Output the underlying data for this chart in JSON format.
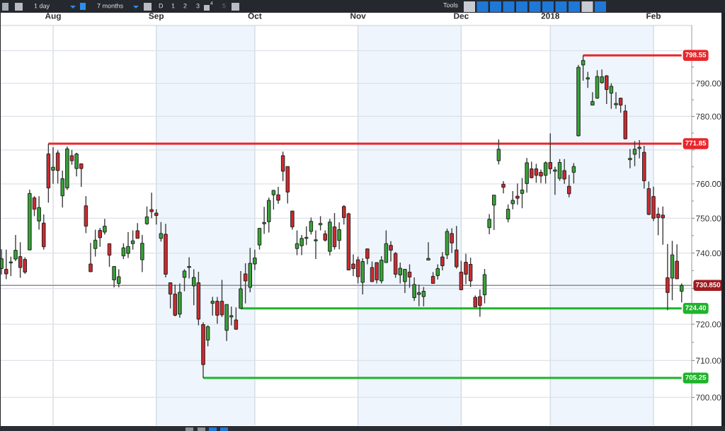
{
  "chart_data": {
    "type": "candlestick",
    "categories": [
      null,
      null,
      null,
      null,
      null,
      null,
      null,
      null,
      null,
      null,
      null,
      "Aug",
      null,
      null,
      null,
      null,
      null,
      null,
      null,
      null,
      null,
      null,
      null,
      null,
      null,
      null,
      null,
      null,
      null,
      null,
      null,
      null,
      null,
      "Sep",
      null,
      null,
      null,
      null,
      null,
      null,
      null,
      null,
      null,
      null,
      null,
      null,
      null,
      null,
      null,
      null,
      null,
      null,
      null,
      null,
      "Oct",
      null,
      null,
      null,
      null,
      null,
      null,
      null,
      null,
      null,
      null,
      null,
      null,
      null,
      null,
      null,
      null,
      null,
      null,
      null,
      null,
      null,
      "Nov",
      null,
      null,
      null,
      null,
      null,
      null,
      null,
      null,
      null,
      null,
      null,
      null,
      null,
      null,
      null,
      null,
      null,
      null,
      null,
      null,
      null,
      "Dec",
      null,
      null,
      null,
      null,
      null,
      null,
      null,
      null,
      null,
      null,
      null,
      null,
      null,
      null,
      null,
      null,
      null,
      null,
      "2018",
      null,
      null,
      null,
      null,
      null,
      null,
      null,
      null,
      null,
      null,
      null,
      null,
      null,
      null,
      null,
      null,
      null,
      null,
      null,
      null,
      null,
      "Feb",
      null,
      null,
      null,
      null,
      null,
      null
    ],
    "ohlc": [
      [
        735.6,
        741.1,
        733.9,
        738.4
      ],
      [
        735.4,
        741.0,
        732.6,
        734.1
      ],
      [
        737.2,
        739.0,
        733.5,
        737.5
      ],
      [
        738.3,
        745.2,
        737.7,
        740.8
      ],
      [
        739.0,
        743.1,
        733.0,
        735.9
      ],
      [
        738.2,
        738.8,
        734.1,
        734.6
      ],
      [
        740.9,
        758.3,
        740.9,
        757.2
      ],
      [
        755.9,
        756.4,
        750.6,
        752.6
      ],
      [
        749.2,
        756.4,
        746.7,
        753.1
      ],
      [
        748.6,
        751.1,
        741.0,
        741.8
      ],
      [
        768.8,
        771.85,
        754.5,
        758.8
      ],
      [
        764.0,
        770.8,
        760.0,
        764.9
      ],
      [
        769.1,
        769.9,
        760.1,
        763.9
      ],
      [
        756.5,
        763.9,
        753.1,
        761.5
      ],
      [
        758.8,
        771.0,
        758.2,
        770.3
      ],
      [
        768.3,
        770.0,
        765.6,
        766.8
      ],
      [
        764.5,
        769.2,
        762.2,
        768.8
      ],
      [
        765.9,
        765.9,
        759.1,
        764.5
      ],
      [
        753.6,
        756.4,
        745.7,
        747.7
      ],
      [
        736.9,
        742.9,
        734.7,
        734.7
      ],
      [
        741.3,
        746.7,
        739.0,
        743.7
      ],
      [
        746.5,
        747.2,
        741.8,
        744.4
      ],
      [
        746.0,
        749.8,
        745.3,
        747.7
      ],
      [
        742.7,
        742.7,
        736.1,
        739.4
      ],
      [
        732.4,
        736.2,
        730.3,
        736.2
      ],
      [
        731.4,
        735.4,
        730.3,
        733.3
      ],
      [
        739.2,
        742.8,
        738.3,
        741.5
      ],
      [
        739.9,
        746.0,
        738.6,
        741.9
      ],
      [
        742.7,
        746.5,
        741.0,
        743.5
      ],
      [
        746.4,
        748.6,
        744.2,
        744.2
      ],
      [
        738.1,
        745.2,
        734.6,
        742.8
      ],
      [
        748.4,
        753.4,
        748.1,
        750.4
      ],
      [
        752.5,
        757.4,
        750.0,
        751.9
      ],
      [
        751.5,
        752.6,
        748.2,
        750.8
      ],
      [
        744.2,
        748.9,
        743.3,
        745.6
      ],
      [
        745.4,
        748.4,
        733.1,
        734.0
      ],
      [
        731.6,
        731.6,
        724.4,
        728.4
      ],
      [
        728.4,
        731.1,
        722.2,
        722.5
      ],
      [
        722.8,
        731.4,
        721.8,
        728.9
      ],
      [
        733.1,
        735.4,
        729.2,
        734.9
      ],
      [
        735.9,
        738.8,
        732.8,
        736.2
      ],
      [
        730.7,
        735.4,
        725.3,
        733.1
      ],
      [
        731.6,
        734.7,
        719.7,
        721.4
      ],
      [
        719.9,
        720.5,
        705.25,
        708.9
      ],
      [
        715.6,
        719.7,
        713.9,
        719.3
      ],
      [
        725.8,
        727.6,
        722.4,
        726.4
      ],
      [
        726.4,
        727.6,
        720.1,
        722.5
      ],
      [
        726.4,
        732.4,
        722.0,
        722.6
      ],
      [
        718.3,
        725.5,
        715.4,
        725.5
      ],
      [
        722.0,
        724.9,
        719.7,
        722.4
      ],
      [
        721.2,
        724.7,
        718.6,
        718.6
      ],
      [
        724.4,
        734.9,
        724.4,
        729.9
      ],
      [
        734.1,
        737.1,
        725.8,
        732.1
      ],
      [
        730.3,
        741.5,
        728.9,
        737.1
      ],
      [
        736.9,
        741.0,
        735.2,
        738.6
      ],
      [
        742.3,
        747.1,
        741.0,
        747.1
      ],
      [
        748.4,
        753.3,
        745.5,
        748.8
      ],
      [
        749.0,
        756.0,
        745.9,
        755.2
      ],
      [
        756.8,
        758.1,
        752.5,
        758.1
      ],
      [
        756.8,
        759.1,
        754.2,
        755.2
      ],
      [
        768.3,
        769.5,
        760.8,
        763.7
      ],
      [
        765.1,
        765.1,
        754.3,
        757.6
      ],
      [
        752.1,
        752.1,
        746.7,
        747.5
      ],
      [
        741.3,
        746.5,
        739.4,
        742.7
      ],
      [
        742.1,
        745.2,
        739.4,
        744.2
      ],
      [
        744.2,
        747.7,
        742.3,
        744.5
      ],
      [
        746.2,
        750.2,
        745.3,
        749.1
      ],
      [
        743.5,
        746.5,
        738.3,
        743.8
      ],
      [
        748.1,
        750.6,
        746.5,
        748.5
      ],
      [
        745.5,
        746.5,
        743.3,
        743.7
      ],
      [
        740.5,
        749.8,
        739.3,
        748.9
      ],
      [
        747.5,
        751.5,
        741.0,
        741.8
      ],
      [
        743.6,
        748.8,
        741.1,
        746.7
      ],
      [
        753.4,
        753.8,
        748.2,
        750.2
      ],
      [
        751.3,
        751.6,
        735.2,
        735.2
      ],
      [
        736.9,
        739.6,
        733.5,
        735.6
      ],
      [
        738.1,
        739.0,
        731.4,
        733.3
      ],
      [
        731.7,
        738.5,
        728.3,
        737.6
      ],
      [
        741.2,
        741.2,
        736.8,
        738.5
      ],
      [
        735.9,
        737.6,
        731.9,
        731.9
      ],
      [
        737.3,
        737.3,
        731.4,
        732.4
      ],
      [
        732.1,
        739.1,
        731.4,
        738.0
      ],
      [
        737.3,
        746.5,
        737.3,
        742.7
      ],
      [
        742.2,
        743.4,
        737.6,
        740.8
      ],
      [
        739.9,
        740.3,
        733.0,
        734.0
      ],
      [
        733.8,
        737.3,
        731.4,
        735.7
      ],
      [
        731.9,
        735.4,
        728.7,
        735.4
      ],
      [
        734.6,
        736.8,
        730.2,
        733.2
      ],
      [
        727.4,
        733.1,
        726.5,
        731.1
      ],
      [
        728.3,
        731.1,
        725.0,
        728.8
      ],
      [
        727.7,
        730.4,
        725.0,
        729.2
      ],
      [
        738.0,
        743.1,
        738.0,
        738.5
      ],
      [
        733.4,
        734.6,
        731.4,
        731.4
      ],
      [
        733.6,
        736.8,
        732.5,
        735.6
      ],
      [
        738.9,
        740.3,
        735.1,
        736.4
      ],
      [
        739.5,
        747.0,
        738.3,
        746.2
      ],
      [
        745.6,
        747.1,
        740.0,
        742.9
      ],
      [
        740.9,
        747.8,
        735.6,
        736.1
      ],
      [
        734.6,
        737.8,
        729.6,
        729.6
      ],
      [
        737.4,
        739.8,
        731.2,
        734.0
      ],
      [
        736.8,
        738.7,
        730.4,
        732.1
      ],
      [
        727.5,
        728.0,
        724.8,
        724.8
      ],
      [
        727.7,
        729.7,
        722.1,
        725.2
      ],
      [
        728.2,
        735.5,
        725.8,
        733.9
      ],
      [
        747.3,
        751.2,
        745.4,
        749.7
      ],
      [
        753.8,
        756.7,
        746.6,
        756.7
      ],
      [
        766.8,
        773.1,
        765.7,
        770.2
      ],
      [
        759.9,
        760.8,
        757.2,
        759.0
      ],
      [
        749.8,
        754.0,
        748.8,
        752.6
      ],
      [
        754.2,
        757.9,
        752.6,
        755.2
      ],
      [
        756.4,
        760.1,
        753.9,
        755.8
      ],
      [
        757.2,
        761.7,
        752.9,
        758.2
      ],
      [
        760.1,
        767.6,
        757.4,
        766.2
      ],
      [
        764.4,
        766.5,
        761.6,
        761.8
      ],
      [
        764.4,
        765.9,
        760.3,
        762.5
      ],
      [
        763.4,
        764.2,
        760.2,
        762.3
      ],
      [
        762.5,
        766.6,
        760.1,
        766.2
      ],
      [
        766.3,
        774.9,
        762.9,
        764.4
      ],
      [
        763.7,
        765.0,
        756.8,
        764.1
      ],
      [
        761.6,
        767.3,
        760.9,
        766.3
      ],
      [
        763.9,
        767.3,
        760.0,
        761.4
      ],
      [
        759.3,
        762.6,
        756.1,
        757.1
      ],
      [
        763.4,
        766.1,
        760.1,
        765.1
      ],
      [
        774.2,
        795.6,
        774.0,
        794.9
      ],
      [
        795.6,
        798.55,
        790.8,
        797.0
      ],
      [
        791.3,
        793.5,
        788.6,
        791.7
      ],
      [
        783.4,
        787.3,
        783.4,
        784.5
      ],
      [
        785.5,
        794.0,
        785.3,
        792.1
      ],
      [
        790.2,
        794.2,
        789.9,
        792.0
      ],
      [
        792.3,
        792.5,
        783.7,
        788.1
      ],
      [
        787.0,
        790.0,
        782.3,
        789.1
      ],
      [
        783.5,
        787.3,
        782.3,
        783.9
      ],
      [
        785.5,
        785.6,
        781.1,
        783.4
      ],
      [
        781.6,
        783.5,
        773.1,
        773.3
      ],
      [
        767.1,
        770.3,
        764.6,
        767.5
      ],
      [
        768.7,
        772.6,
        765.2,
        770.2
      ],
      [
        770.4,
        772.9,
        767.5,
        770.8
      ],
      [
        769.3,
        771.2,
        758.6,
        760.9
      ],
      [
        758.6,
        760.7,
        750.9,
        751.1
      ],
      [
        756.3,
        759.2,
        749.2,
        750.0
      ],
      [
        751.2,
        753.1,
        745.1,
        750.2
      ],
      [
        750.9,
        753.4,
        742.4,
        750.1
      ],
      [
        733.0,
        742.6,
        723.9,
        728.85
      ],
      [
        732.9,
        743.5,
        726.7,
        739.5
      ],
      [
        737.7,
        742.5,
        732.7,
        732.7
      ],
      [
        729.2,
        731.4,
        726.1,
        730.85
      ]
    ],
    "colors": [
      "#36a436",
      "#cd2a2f",
      "#36a436",
      "#36a436",
      "#cd2a2f",
      "#cd2a2f",
      "#36a436",
      "#cd2a2f",
      "#36a436",
      "#cd2a2f",
      "#cd2a2f",
      "#36a436",
      "#cd2a2f",
      "#36a436",
      "#36a436",
      "#cd2a2f",
      "#36a436",
      "#cd2a2f",
      "#cd2a2f",
      "#cd2a2f",
      "#36a436",
      "#cd2a2f",
      "#36a436",
      "#cd2a2f",
      "#36a436",
      "#36a436",
      "#36a436",
      "#36a436",
      "#36a436",
      "#cd2a2f",
      "#36a436",
      "#36a436",
      "#cd2a2f",
      "#cd2a2f",
      "#36a436",
      "#cd2a2f",
      "#cd2a2f",
      "#cd2a2f",
      "#36a436",
      "#36a436",
      "#36a436",
      "#36a436",
      "#cd2a2f",
      "#cd2a2f",
      "#36a436",
      "#36a436",
      "#cd2a2f",
      "#cd2a2f",
      "#36a436",
      "#36a436",
      "#cd2a2f",
      "#36a436",
      "#cd2a2f",
      "#36a436",
      "#36a436",
      "#36a436",
      "#36a436",
      "#36a436",
      "#36a436",
      "#cd2a2f",
      "#cd2a2f",
      "#cd2a2f",
      "#cd2a2f",
      "#36a436",
      "#36a436",
      "#36a436",
      "#36a436",
      "#36a436",
      "#36a436",
      "#cd2a2f",
      "#36a436",
      "#cd2a2f",
      "#36a436",
      "#cd2a2f",
      "#cd2a2f",
      "#cd2a2f",
      "#cd2a2f",
      "#36a436",
      "#cd2a2f",
      "#cd2a2f",
      "#cd2a2f",
      "#36a436",
      "#36a436",
      "#cd2a2f",
      "#cd2a2f",
      "#36a436",
      "#36a436",
      "#cd2a2f",
      "#36a436",
      "#36a436",
      "#36a436",
      "#36a436",
      "#cd2a2f",
      "#36a436",
      "#cd2a2f",
      "#36a436",
      "#cd2a2f",
      "#cd2a2f",
      "#cd2a2f",
      "#cd2a2f",
      "#cd2a2f",
      "#cd2a2f",
      "#cd2a2f",
      "#36a436",
      "#36a436",
      "#36a436",
      "#36a436",
      "#cd2a2f",
      "#36a436",
      "#36a436",
      "#cd2a2f",
      "#36a436",
      "#36a436",
      "#cd2a2f",
      "#cd2a2f",
      "#cd2a2f",
      "#36a436",
      "#cd2a2f",
      "#36a436",
      "#36a436",
      "#cd2a2f",
      "#cd2a2f",
      "#36a436",
      "#36a436",
      "#36a436",
      "#36a436",
      "#36a436",
      "#36a436",
      "#36a436",
      "#cd2a2f",
      "#36a436",
      "#36a436",
      "#cd2a2f",
      "#cd2a2f",
      "#36a436",
      "#36a436",
      "#36a436",
      "#cd2a2f",
      "#cd2a2f",
      "#cd2a2f",
      "#cd2a2f",
      "#cd2a2f",
      "#cd2a2f",
      "#36a436",
      "#cd2a2f",
      "#36a436"
    ],
    "series": [
      {
        "type": "line",
        "color": "#e8262b",
        "values": [
          null,
          null,
          null,
          null,
          null,
          null,
          null,
          null,
          null,
          null,
          null,
          null,
          null,
          null,
          null,
          null,
          null,
          null,
          null,
          null,
          null,
          null,
          null,
          null,
          null,
          null,
          null,
          null,
          null,
          null,
          null,
          null,
          null,
          null,
          null,
          null,
          null,
          null,
          null,
          null,
          null,
          null,
          null,
          null,
          null,
          null,
          null,
          null,
          null,
          null,
          null,
          null,
          null,
          null,
          null,
          null,
          null,
          null,
          null,
          null,
          null,
          null,
          null,
          null,
          null,
          null,
          null,
          null,
          null,
          null,
          null,
          null,
          null,
          null,
          null,
          null,
          null,
          null,
          null,
          null,
          null,
          null,
          null,
          null,
          null,
          null,
          null,
          null,
          null,
          null,
          null,
          null,
          null,
          null,
          null,
          null,
          null,
          null,
          null,
          null,
          null,
          null,
          null,
          null,
          null,
          null,
          null,
          null,
          null,
          null,
          null,
          null,
          null,
          null,
          null,
          null,
          null,
          null,
          null,
          null,
          null,
          null,
          null,
          null,
          798.55,
          798.55,
          798.55,
          798.55,
          798.55,
          798.55,
          798.55,
          798.55,
          798.55,
          798.55,
          798.55,
          798.55,
          798.55,
          798.55,
          798.55,
          798.55,
          798.55,
          798.55,
          798.55,
          798.55,
          798.55,
          798.55
        ],
        "value_labels": [
          null,
          null,
          null,
          null,
          null,
          null,
          null,
          null,
          null,
          null,
          null,
          null,
          null,
          null,
          null,
          null,
          null,
          null,
          null,
          null,
          null,
          null,
          null,
          null,
          null,
          null,
          null,
          null,
          null,
          null,
          null,
          null,
          null,
          null,
          null,
          null,
          null,
          null,
          null,
          null,
          null,
          null,
          null,
          null,
          null,
          null,
          null,
          null,
          null,
          null,
          null,
          null,
          null,
          null,
          null,
          null,
          null,
          null,
          null,
          null,
          null,
          null,
          null,
          null,
          null,
          null,
          null,
          null,
          null,
          null,
          null,
          null,
          null,
          null,
          null,
          null,
          null,
          null,
          null,
          null,
          null,
          null,
          null,
          null,
          null,
          null,
          null,
          null,
          null,
          null,
          null,
          null,
          null,
          null,
          null,
          null,
          null,
          null,
          null,
          null,
          null,
          null,
          null,
          null,
          null,
          null,
          null,
          null,
          null,
          null,
          null,
          null,
          null,
          null,
          null,
          null,
          null,
          null,
          null,
          null,
          null,
          null,
          null,
          null,
          null,
          null,
          null,
          null,
          null,
          null,
          null,
          null,
          null,
          null,
          null,
          null,
          null,
          null,
          null,
          null,
          null,
          null,
          null,
          null,
          null,
          "798.55"
        ]
      },
      {
        "type": "line",
        "color": "#e8262b",
        "values": [
          null,
          null,
          null,
          null,
          null,
          null,
          null,
          null,
          null,
          null,
          771.85,
          771.85,
          771.85,
          771.85,
          771.85,
          771.85,
          771.85,
          771.85,
          771.85,
          771.85,
          771.85,
          771.85,
          771.85,
          771.85,
          771.85,
          771.85,
          771.85,
          771.85,
          771.85,
          771.85,
          771.85,
          771.85,
          771.85,
          771.85,
          771.85,
          771.85,
          771.85,
          771.85,
          771.85,
          771.85,
          771.85,
          771.85,
          771.85,
          771.85,
          771.85,
          771.85,
          771.85,
          771.85,
          771.85,
          771.85,
          771.85,
          771.85,
          771.85,
          771.85,
          771.85,
          771.85,
          771.85,
          771.85,
          771.85,
          771.85,
          771.85,
          771.85,
          771.85,
          771.85,
          771.85,
          771.85,
          771.85,
          771.85,
          771.85,
          771.85,
          771.85,
          771.85,
          771.85,
          771.85,
          771.85,
          771.85,
          771.85,
          771.85,
          771.85,
          771.85,
          771.85,
          771.85,
          771.85,
          771.85,
          771.85,
          771.85,
          771.85,
          771.85,
          771.85,
          771.85,
          771.85,
          771.85,
          771.85,
          771.85,
          771.85,
          771.85,
          771.85,
          771.85,
          771.85,
          771.85,
          771.85,
          771.85,
          771.85,
          771.85,
          771.85,
          771.85,
          771.85,
          771.85,
          771.85,
          771.85,
          771.85,
          771.85,
          771.85,
          771.85,
          771.85,
          771.85,
          771.85,
          771.85,
          771.85,
          771.85,
          771.85,
          771.85,
          771.85,
          771.85,
          771.85,
          771.85,
          771.85,
          771.85,
          771.85,
          771.85,
          771.85,
          771.85,
          771.85,
          771.85,
          771.85,
          771.85,
          771.85,
          771.85,
          771.85,
          771.85,
          771.85,
          771.85,
          771.85,
          771.85,
          771.85,
          771.85
        ],
        "value_labels": [
          null,
          null,
          null,
          null,
          null,
          null,
          null,
          null,
          null,
          null,
          null,
          null,
          null,
          null,
          null,
          null,
          null,
          null,
          null,
          null,
          null,
          null,
          null,
          null,
          null,
          null,
          null,
          null,
          null,
          null,
          null,
          null,
          null,
          null,
          null,
          null,
          null,
          null,
          null,
          null,
          null,
          null,
          null,
          null,
          null,
          null,
          null,
          null,
          null,
          null,
          null,
          null,
          null,
          null,
          null,
          null,
          null,
          null,
          null,
          null,
          null,
          null,
          null,
          null,
          null,
          null,
          null,
          null,
          null,
          null,
          null,
          null,
          null,
          null,
          null,
          null,
          null,
          null,
          null,
          null,
          null,
          null,
          null,
          null,
          null,
          null,
          null,
          null,
          null,
          null,
          null,
          null,
          null,
          null,
          null,
          null,
          null,
          null,
          null,
          null,
          null,
          null,
          null,
          null,
          null,
          null,
          null,
          null,
          null,
          null,
          null,
          null,
          null,
          null,
          null,
          null,
          null,
          null,
          null,
          null,
          null,
          null,
          null,
          null,
          null,
          null,
          null,
          null,
          null,
          null,
          null,
          null,
          null,
          null,
          null,
          null,
          null,
          null,
          null,
          null,
          null,
          null,
          null,
          null,
          null,
          "771.85"
        ]
      },
      {
        "type": "line",
        "color": "#1fb32a",
        "values": [
          null,
          null,
          null,
          null,
          null,
          null,
          null,
          null,
          null,
          null,
          null,
          null,
          null,
          null,
          null,
          null,
          null,
          null,
          null,
          null,
          null,
          null,
          null,
          null,
          null,
          null,
          null,
          null,
          null,
          null,
          null,
          null,
          null,
          null,
          null,
          null,
          null,
          null,
          null,
          null,
          null,
          null,
          null,
          null,
          null,
          null,
          null,
          null,
          null,
          null,
          null,
          724.4,
          724.4,
          724.4,
          724.4,
          724.4,
          724.4,
          724.4,
          724.4,
          724.4,
          724.4,
          724.4,
          724.4,
          724.4,
          724.4,
          724.4,
          724.4,
          724.4,
          724.4,
          724.4,
          724.4,
          724.4,
          724.4,
          724.4,
          724.4,
          724.4,
          724.4,
          724.4,
          724.4,
          724.4,
          724.4,
          724.4,
          724.4,
          724.4,
          724.4,
          724.4,
          724.4,
          724.4,
          724.4,
          724.4,
          724.4,
          724.4,
          724.4,
          724.4,
          724.4,
          724.4,
          724.4,
          724.4,
          724.4,
          724.4,
          724.4,
          724.4,
          724.4,
          724.4,
          724.4,
          724.4,
          724.4,
          724.4,
          724.4,
          724.4,
          724.4,
          724.4,
          724.4,
          724.4,
          724.4,
          724.4,
          724.4,
          724.4,
          724.4,
          724.4,
          724.4,
          724.4,
          724.4,
          724.4,
          724.4,
          724.4,
          724.4,
          724.4,
          724.4,
          724.4,
          724.4,
          724.4,
          724.4,
          724.4,
          724.4,
          724.4,
          724.4,
          724.4,
          724.4,
          724.4,
          724.4,
          724.4,
          724.4,
          724.4,
          724.4,
          724.4
        ],
        "value_labels": [
          null,
          null,
          null,
          null,
          null,
          null,
          null,
          null,
          null,
          null,
          null,
          null,
          null,
          null,
          null,
          null,
          null,
          null,
          null,
          null,
          null,
          null,
          null,
          null,
          null,
          null,
          null,
          null,
          null,
          null,
          null,
          null,
          null,
          null,
          null,
          null,
          null,
          null,
          null,
          null,
          null,
          null,
          null,
          null,
          null,
          null,
          null,
          null,
          null,
          null,
          null,
          null,
          null,
          null,
          null,
          null,
          null,
          null,
          null,
          null,
          null,
          null,
          null,
          null,
          null,
          null,
          null,
          null,
          null,
          null,
          null,
          null,
          null,
          null,
          null,
          null,
          null,
          null,
          null,
          null,
          null,
          null,
          null,
          null,
          null,
          null,
          null,
          null,
          null,
          null,
          null,
          null,
          null,
          null,
          null,
          null,
          null,
          null,
          null,
          null,
          null,
          null,
          null,
          null,
          null,
          null,
          null,
          null,
          null,
          null,
          null,
          null,
          null,
          null,
          null,
          null,
          null,
          null,
          null,
          null,
          null,
          null,
          null,
          null,
          null,
          null,
          null,
          null,
          null,
          null,
          null,
          null,
          null,
          null,
          null,
          null,
          null,
          null,
          null,
          null,
          null,
          null,
          null,
          null,
          null,
          "724.40"
        ]
      },
      {
        "type": "line",
        "color": "#1fb32a",
        "values": [
          null,
          null,
          null,
          null,
          null,
          null,
          null,
          null,
          null,
          null,
          null,
          null,
          null,
          null,
          null,
          null,
          null,
          null,
          null,
          null,
          null,
          null,
          null,
          null,
          null,
          null,
          null,
          null,
          null,
          null,
          null,
          null,
          null,
          null,
          null,
          null,
          null,
          null,
          null,
          null,
          null,
          null,
          null,
          705.25,
          705.25,
          705.25,
          705.25,
          705.25,
          705.25,
          705.25,
          705.25,
          705.25,
          705.25,
          705.25,
          705.25,
          705.25,
          705.25,
          705.25,
          705.25,
          705.25,
          705.25,
          705.25,
          705.25,
          705.25,
          705.25,
          705.25,
          705.25,
          705.25,
          705.25,
          705.25,
          705.25,
          705.25,
          705.25,
          705.25,
          705.25,
          705.25,
          705.25,
          705.25,
          705.25,
          705.25,
          705.25,
          705.25,
          705.25,
          705.25,
          705.25,
          705.25,
          705.25,
          705.25,
          705.25,
          705.25,
          705.25,
          705.25,
          705.25,
          705.25,
          705.25,
          705.25,
          705.25,
          705.25,
          705.25,
          705.25,
          705.25,
          705.25,
          705.25,
          705.25,
          705.25,
          705.25,
          705.25,
          705.25,
          705.25,
          705.25,
          705.25,
          705.25,
          705.25,
          705.25,
          705.25,
          705.25,
          705.25,
          705.25,
          705.25,
          705.25,
          705.25,
          705.25,
          705.25,
          705.25,
          705.25,
          705.25,
          705.25,
          705.25,
          705.25,
          705.25,
          705.25,
          705.25,
          705.25,
          705.25,
          705.25,
          705.25,
          705.25,
          705.25,
          705.25,
          705.25,
          705.25,
          705.25,
          705.25,
          705.25,
          705.25,
          705.25
        ],
        "value_labels": [
          null,
          null,
          null,
          null,
          null,
          null,
          null,
          null,
          null,
          null,
          null,
          null,
          null,
          null,
          null,
          null,
          null,
          null,
          null,
          null,
          null,
          null,
          null,
          null,
          null,
          null,
          null,
          null,
          null,
          null,
          null,
          null,
          null,
          null,
          null,
          null,
          null,
          null,
          null,
          null,
          null,
          null,
          null,
          null,
          null,
          null,
          null,
          null,
          null,
          null,
          null,
          null,
          null,
          null,
          null,
          null,
          null,
          null,
          null,
          null,
          null,
          null,
          null,
          null,
          null,
          null,
          null,
          null,
          null,
          null,
          null,
          null,
          null,
          null,
          null,
          null,
          null,
          null,
          null,
          null,
          null,
          null,
          null,
          null,
          null,
          null,
          null,
          null,
          null,
          null,
          null,
          null,
          null,
          null,
          null,
          null,
          null,
          null,
          null,
          null,
          null,
          null,
          null,
          null,
          null,
          null,
          null,
          null,
          null,
          null,
          null,
          null,
          null,
          null,
          null,
          null,
          null,
          null,
          null,
          null,
          null,
          null,
          null,
          null,
          null,
          null,
          null,
          null,
          null,
          null,
          null,
          null,
          null,
          null,
          null,
          null,
          null,
          null,
          null,
          null,
          null,
          null,
          null,
          null,
          null,
          "705.25"
        ]
      }
    ],
    "ref_lines": [
      {
        "axis": "y",
        "value": 730.85,
        "label": "730.850",
        "color": "#8d8d8d"
      }
    ],
    "bands": [
      {
        "axis": "x",
        "from": "Sep",
        "to": "Oct",
        "color": "#eef5fc"
      },
      {
        "axis": "x",
        "from": "Nov",
        "to": "Dec",
        "color": "#eef5fc"
      },
      {
        "axis": "x",
        "from": "2018",
        "to": "Feb",
        "color": "#eef5fc"
      }
    ],
    "log": true,
    "ylim": [
      692.5,
      807.8
    ],
    "yticks": [
      {
        "value": 700,
        "label": "700.00"
      },
      {
        "value": 705,
        "label": null
      },
      {
        "value": 710,
        "label": "710.00"
      },
      {
        "value": 715,
        "label": null
      },
      {
        "value": 720,
        "label": "720.00"
      },
      {
        "value": 725,
        "label": null
      },
      {
        "value": 730,
        "label": null
      },
      {
        "value": 735,
        "label": null
      },
      {
        "value": 740,
        "label": "740.00"
      },
      {
        "value": 745,
        "label": null
      },
      {
        "value": 750,
        "label": "750.00"
      },
      {
        "value": 755,
        "label": null
      },
      {
        "value": 760,
        "label": "760.00"
      },
      {
        "value": 765,
        "label": null
      },
      {
        "value": 770,
        "label": null
      },
      {
        "value": 775,
        "label": null
      },
      {
        "value": 780,
        "label": "780.00"
      },
      {
        "value": 785,
        "label": null
      },
      {
        "value": 790,
        "label": "790.00"
      },
      {
        "value": 795,
        "label": null
      },
      {
        "value": 800,
        "label": null
      }
    ],
    "grid": true,
    "annotations": [
      "1 day",
      "7 months",
      "D",
      "1",
      "2",
      "3",
      "4",
      "5",
      "Tools"
    ]
  }
}
